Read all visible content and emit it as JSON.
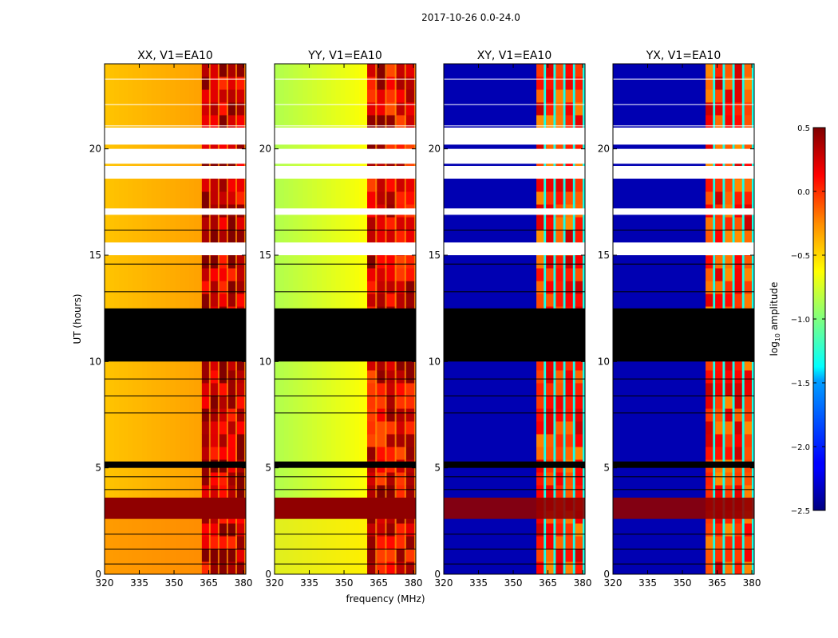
{
  "figure_title": "2017-10-26 0.0-24.0",
  "ylabel": "UT (hours)",
  "xlabel": "frequency (MHz)",
  "colorbar": {
    "label_prefix": "log",
    "label_sub": "10",
    "label_suffix": " amplitude",
    "ticks": [
      0.5,
      0.0,
      -0.5,
      -1.0,
      -1.5,
      -2.0,
      -2.5
    ],
    "tick_labels": [
      "0.5",
      "0.0",
      "−0.5",
      "−1.0",
      "−1.5",
      "−2.0",
      "−2.5"
    ],
    "range": [
      -2.5,
      0.5
    ],
    "colormap": "jet"
  },
  "chart_data": [
    {
      "type": "heatmap",
      "title": "XX, V1=EA10",
      "xlabel": "",
      "ylabel": "UT (hours)",
      "xlim": [
        320,
        381
      ],
      "ylim": [
        0,
        24
      ],
      "xticks": [
        320,
        335,
        350,
        365,
        380
      ],
      "yticks": [
        0,
        5,
        10,
        15,
        20
      ],
      "base_log_amp": -0.45,
      "rfi_log_amp": 0.3,
      "rfi_band_mhz": [
        362,
        381
      ]
    },
    {
      "type": "heatmap",
      "title": "YY, V1=EA10",
      "xlabel": "frequency (MHz)",
      "ylabel": "",
      "xlim": [
        320,
        381
      ],
      "ylim": [
        0,
        24
      ],
      "xticks": [
        320,
        335,
        350,
        365,
        380
      ],
      "yticks": [
        0,
        5,
        10,
        15,
        20
      ],
      "base_log_amp": -0.75,
      "rfi_log_amp": 0.2,
      "rfi_band_mhz": [
        360,
        381
      ]
    },
    {
      "type": "heatmap",
      "title": "XY, V1=EA10",
      "xlabel": "",
      "ylabel": "",
      "xlim": [
        320,
        381
      ],
      "ylim": [
        0,
        24
      ],
      "xticks": [
        320,
        335,
        350,
        365,
        380
      ],
      "yticks": [
        0,
        5,
        10,
        15,
        20
      ],
      "base_log_amp": -2.35,
      "rfi_log_amp": 0.0,
      "rfi_band_mhz": [
        360,
        381
      ]
    },
    {
      "type": "heatmap",
      "title": "YX, V1=EA10",
      "xlabel": "",
      "ylabel": "",
      "xlim": [
        320,
        381
      ],
      "ylim": [
        0,
        24
      ],
      "xticks": [
        320,
        335,
        350,
        365,
        380
      ],
      "yticks": [
        0,
        5,
        10,
        15,
        20
      ],
      "base_log_amp": -2.35,
      "rfi_log_amp": 0.0,
      "rfi_band_mhz": [
        360,
        381
      ]
    }
  ],
  "flagged_ut_hours": [
    [
      10.0,
      12.5
    ],
    [
      5.0,
      5.3
    ]
  ],
  "missing_ut_hours": [
    [
      19.3,
      20.0
    ],
    [
      20.2,
      21.0
    ],
    [
      16.9,
      17.2
    ],
    [
      18.6,
      19.2
    ],
    [
      15.0,
      15.6
    ]
  ]
}
